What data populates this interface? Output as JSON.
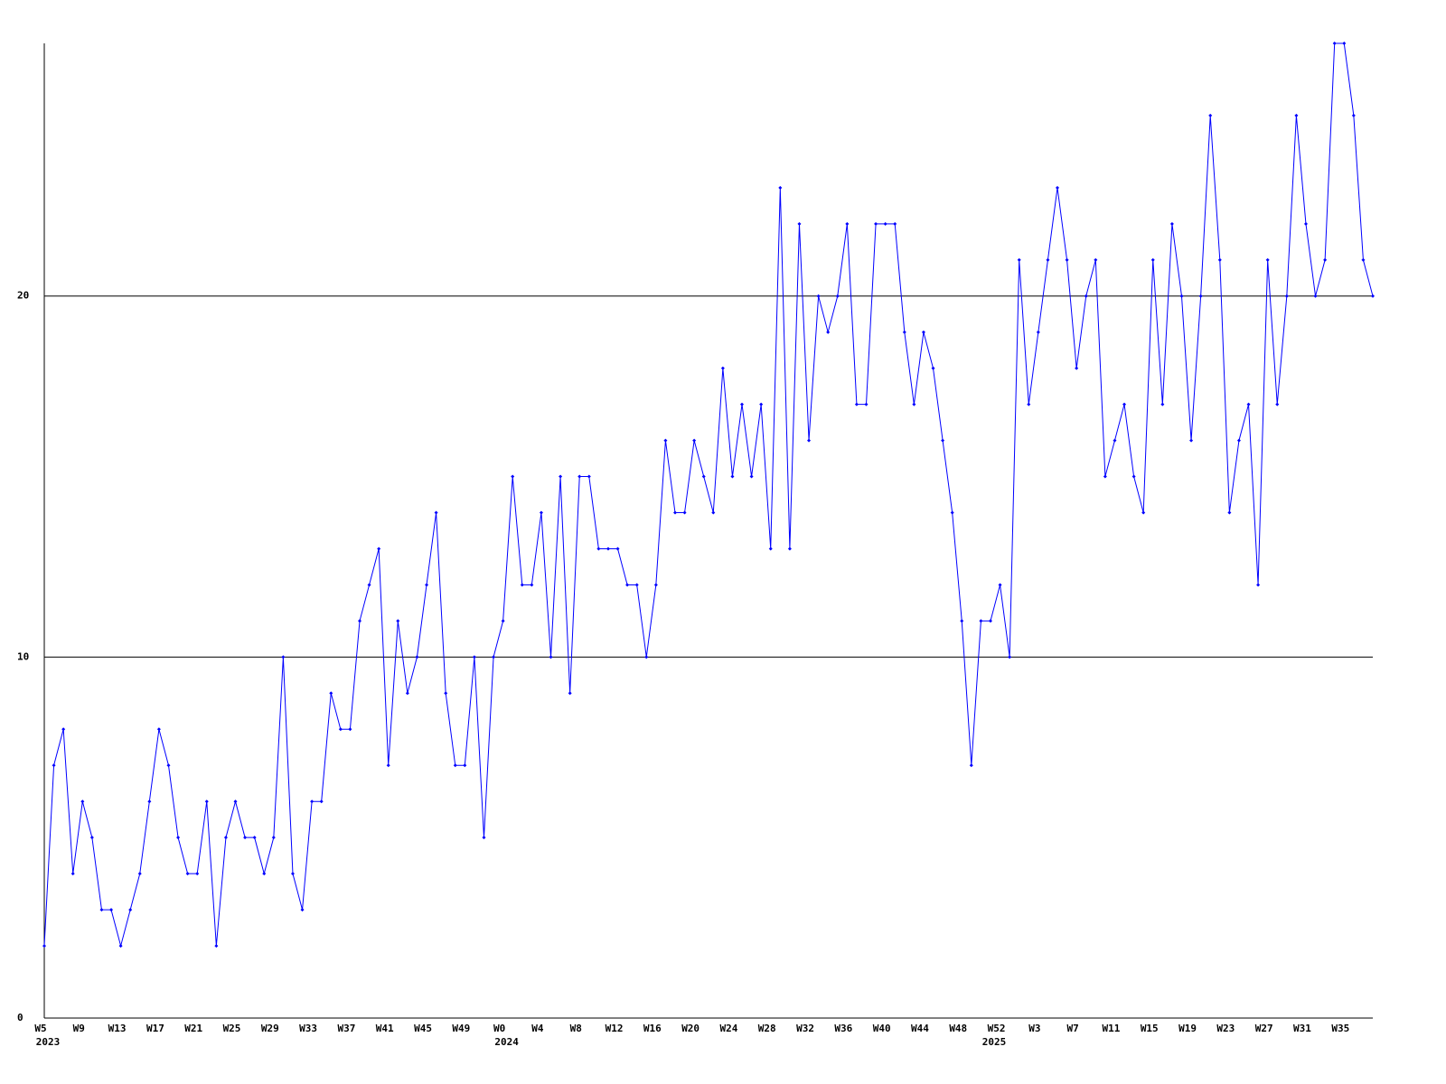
{
  "chart_data": {
    "type": "line",
    "categories": [
      "W5",
      null,
      null,
      null,
      "W9",
      null,
      null,
      null,
      "W13",
      null,
      null,
      null,
      "W17",
      null,
      null,
      null,
      "W21",
      null,
      null,
      null,
      "W25",
      null,
      null,
      null,
      "W29",
      null,
      null,
      null,
      "W33",
      null,
      null,
      null,
      "W37",
      null,
      null,
      null,
      "W41",
      null,
      null,
      null,
      "W45",
      null,
      null,
      null,
      "W49",
      null,
      null,
      null,
      "W0",
      null,
      null,
      null,
      "W4",
      null,
      null,
      null,
      "W8",
      null,
      null,
      null,
      "W12",
      null,
      null,
      null,
      "W16",
      null,
      null,
      null,
      "W20",
      null,
      null,
      null,
      "W24",
      null,
      null,
      null,
      "W28",
      null,
      null,
      null,
      "W32",
      null,
      null,
      null,
      "W36",
      null,
      null,
      null,
      "W40",
      null,
      null,
      null,
      "W44",
      null,
      null,
      null,
      "W48",
      null,
      null,
      null,
      "W52",
      null,
      null,
      null,
      "W3",
      null,
      null,
      null,
      "W7",
      null,
      null,
      null,
      "W11",
      null,
      null,
      null,
      "W15",
      null,
      null,
      null,
      "W19",
      null,
      null,
      null,
      "W23",
      null,
      null,
      null,
      "W27",
      null,
      null,
      null,
      "W31",
      null,
      null,
      null,
      "W35",
      null,
      null,
      null
    ],
    "category_years": [
      "2023",
      null,
      null,
      null,
      null,
      null,
      null,
      null,
      null,
      null,
      null,
      null,
      null,
      null,
      null,
      null,
      null,
      null,
      null,
      null,
      null,
      null,
      null,
      null,
      null,
      null,
      null,
      null,
      null,
      null,
      null,
      null,
      null,
      null,
      null,
      null,
      null,
      null,
      null,
      null,
      null,
      null,
      null,
      null,
      null,
      null,
      null,
      null,
      "2024",
      null,
      null,
      null,
      null,
      null,
      null,
      null,
      null,
      null,
      null,
      null,
      null,
      null,
      null,
      null,
      null,
      null,
      null,
      null,
      null,
      null,
      null,
      null,
      null,
      null,
      null,
      null,
      null,
      null,
      null,
      null,
      null,
      null,
      null,
      null,
      null,
      null,
      null,
      null,
      null,
      null,
      null,
      null,
      null,
      null,
      null,
      null,
      null,
      null,
      null,
      "2025",
      null,
      null,
      null,
      null,
      null,
      null,
      null,
      null,
      null,
      null,
      null,
      null,
      null,
      null,
      null,
      null,
      null,
      null,
      null,
      null,
      null,
      null,
      null,
      null,
      null,
      null,
      null,
      null,
      null,
      null,
      null,
      null,
      null,
      null,
      null,
      null,
      null
    ],
    "values": [
      2,
      7,
      8,
      4,
      6,
      5,
      3,
      3,
      2,
      3,
      4,
      6,
      8,
      7,
      5,
      4,
      4,
      6,
      2,
      5,
      6,
      5,
      5,
      4,
      5,
      10,
      4,
      3,
      6,
      6,
      9,
      8,
      8,
      11,
      12,
      13,
      7,
      11,
      9,
      10,
      12,
      14,
      9,
      7,
      7,
      10,
      5,
      10,
      11,
      15,
      12,
      12,
      14,
      10,
      15,
      9,
      15,
      15,
      13,
      13,
      13,
      12,
      12,
      10,
      12,
      16,
      14,
      14,
      16,
      15,
      14,
      18,
      15,
      17,
      15,
      17,
      13,
      23,
      13,
      22,
      16,
      20,
      19,
      20,
      22,
      17,
      17,
      22,
      22,
      22,
      19,
      17,
      19,
      18,
      16,
      14,
      11,
      7,
      11,
      11,
      12,
      10,
      21,
      17,
      19,
      21,
      23,
      21,
      18,
      20,
      21,
      15,
      16,
      17,
      15,
      14,
      21,
      17,
      22,
      20,
      16,
      20,
      25,
      21,
      14,
      16,
      17,
      12,
      21,
      17,
      20,
      25,
      22,
      20,
      21,
      27,
      27,
      25,
      21,
      20
    ],
    "color": "#0000ff",
    "ylim": [
      0,
      27
    ],
    "yticks": [
      0,
      10,
      20
    ],
    "grid": true
  }
}
